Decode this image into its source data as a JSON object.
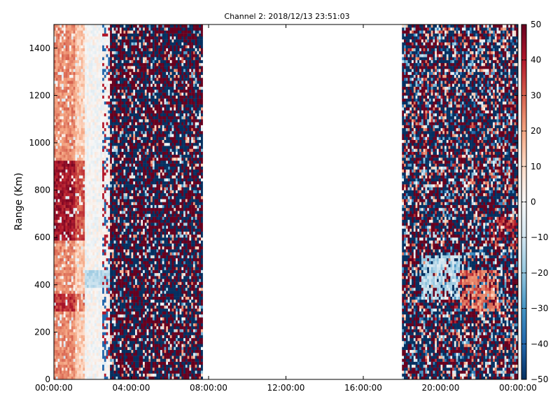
{
  "chart_data": {
    "type": "heatmap",
    "title": "Channel 2: 2018/12/13 23:51:03",
    "ylabel": "Range (Km)",
    "xlabel": "",
    "x_unit": "hours",
    "xlim": [
      0,
      24
    ],
    "ylim": [
      0,
      1500
    ],
    "x_ticks": [
      0,
      4,
      8,
      12,
      16,
      20,
      24
    ],
    "x_tick_labels": [
      "00:00:00",
      "04:00:00",
      "08:00:00",
      "12:00:00",
      "16:00:00",
      "20:00:00",
      "00:00:00"
    ],
    "y_ticks": [
      0,
      200,
      400,
      600,
      800,
      1000,
      1200,
      1400
    ],
    "y_tick_labels": [
      "0",
      "200",
      "400",
      "600",
      "800",
      "1000",
      "1200",
      "1400"
    ],
    "colorbar": {
      "min": -50,
      "max": 50,
      "ticks": [
        50,
        40,
        30,
        20,
        10,
        0,
        -10,
        -20,
        -30,
        -40,
        -50
      ],
      "tick_labels": [
        "50",
        "40",
        "30",
        "20",
        "10",
        "0",
        "−10",
        "−20",
        "−30",
        "−40",
        "−50"
      ],
      "colormap": "RdBu_r",
      "colors": [
        "#053061",
        "#2166ac",
        "#4393c3",
        "#92c5de",
        "#d1e5f0",
        "#f7f7f7",
        "#fddbc7",
        "#f4a582",
        "#d6604d",
        "#b2182b",
        "#67001f"
      ]
    },
    "data_segments": [
      {
        "x_start": 0.0,
        "x_end": 1.6,
        "pattern": "warm (mostly +10 to +50), strongest near 600-900 km and 300-350 km",
        "typical_range": [
          0,
          50
        ]
      },
      {
        "x_start": 1.6,
        "x_end": 2.9,
        "pattern": "near zero (pale), light blue around 400-450 km",
        "typical_range": [
          -15,
          15
        ]
      },
      {
        "x_start": 2.9,
        "x_end": 7.7,
        "pattern": "noise, alternating saturated +50 / -50",
        "typical_range": [
          -50,
          50
        ]
      },
      {
        "x_start": 7.7,
        "x_end": 18.0,
        "pattern": "no data",
        "typical_range": null
      },
      {
        "x_start": 18.0,
        "x_end": 24.0,
        "pattern": "noise, blue patch near 350-500 km around 19-21 h, warm patch near 300-450 km around 21-23 h",
        "typical_range": [
          -50,
          50
        ]
      }
    ],
    "grid": false
  }
}
